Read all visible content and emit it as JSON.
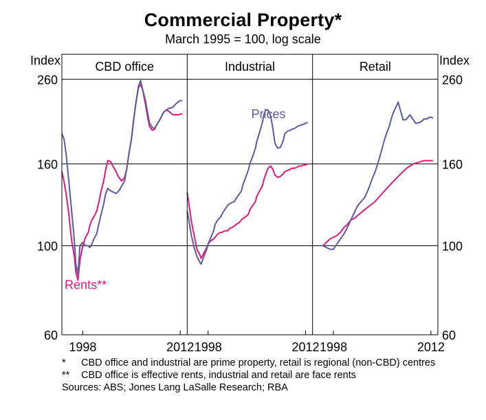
{
  "title": "Commercial Property*",
  "subtitle": "March 1995 = 100, log scale",
  "chart_data": {
    "type": "line",
    "scale": "log",
    "ylabel_left": "Index",
    "ylabel_right": "Index",
    "ylim": [
      60,
      300
    ],
    "yticks": [
      60,
      100,
      160,
      260
    ],
    "ytick_labels": [
      "60",
      "100",
      "160",
      "260"
    ],
    "xlim": [
      1995,
      2013
    ],
    "xticks": [
      1998,
      2012
    ],
    "xtick_labels": [
      "1998",
      "2012"
    ],
    "grid_lines_at": [
      100,
      160,
      260
    ],
    "series_colors": {
      "Prices": "#5b5aa6",
      "Rents": "#e0197a"
    },
    "panels": [
      {
        "name": "CBD office",
        "label": "CBD office",
        "series": [
          {
            "name": "Prices",
            "x": [
              1995,
              1995.3,
              1995.6,
              1996,
              1996.4,
              1996.8,
              1997,
              1997.3,
              1997.6,
              1998,
              1998.4,
              1998.8,
              1999,
              1999.3,
              1999.6,
              2000,
              2000.3,
              2000.6,
              2001,
              2001.3,
              2001.6,
              2002,
              2002.4,
              2002.8,
              2003,
              2003.3,
              2003.6,
              2004,
              2004.3,
              2004.6,
              2005,
              2005.3,
              2005.6,
              2006,
              2006.3,
              2006.6,
              2007,
              2007.3,
              2007.6,
              2008,
              2008.3,
              2008.6,
              2009,
              2009.3,
              2009.6,
              2010,
              2010.4,
              2010.8,
              2011,
              2011.4,
              2011.8,
              2012,
              2012.3
            ],
            "values": [
              190,
              185,
              170,
              145,
              122,
              103,
              90,
              85,
              100,
              102,
              100,
              100,
              99,
              101,
              104,
              107,
              113,
              119,
              127,
              135,
              139,
              137,
              136,
              135,
              136,
              138,
              141,
              145,
              155,
              168,
              185,
              205,
              225,
              250,
              258,
              245,
              230,
              215,
              202,
              197,
              196,
              200,
              205,
              210,
              215,
              218,
              220,
              221,
              222,
              226,
              229,
              230,
              230
            ]
          },
          {
            "name": "Rents",
            "x": [
              1995,
              1995.3,
              1995.6,
              1996,
              1996.4,
              1996.8,
              1997,
              1997.3,
              1997.6,
              1998,
              1998.4,
              1998.8,
              1999,
              1999.3,
              1999.6,
              2000,
              2000.3,
              2000.6,
              2001,
              2001.3,
              2001.6,
              2002,
              2002.4,
              2002.8,
              2003,
              2003.3,
              2003.6,
              2004,
              2004.3,
              2004.6,
              2005,
              2005.3,
              2005.6,
              2006,
              2006.3,
              2006.6,
              2007,
              2007.3,
              2007.6,
              2008,
              2008.3,
              2008.6,
              2009,
              2009.3,
              2009.6,
              2010,
              2010.4,
              2010.8,
              2011,
              2011.4,
              2011.8,
              2012,
              2012.3
            ],
            "values": [
              153,
              145,
              135,
              120,
              103,
              94,
              86,
              82,
              92,
              100,
              105,
              108,
              112,
              116,
              118,
              122,
              128,
              136,
              145,
              155,
              163,
              162,
              157,
              153,
              150,
              147,
              145,
              148,
              155,
              168,
              185,
              205,
              225,
              248,
              252,
              245,
              225,
              210,
              198,
              194,
              195,
              200,
              205,
              210,
              215,
              218,
              216,
              213,
              212,
              212,
              212,
              213,
              213
            ]
          }
        ]
      },
      {
        "name": "Industrial",
        "label": "Industrial",
        "annotation": "Prices",
        "series": [
          {
            "name": "Prices",
            "x": [
              1995,
              1995.3,
              1995.6,
              1996,
              1996.4,
              1996.8,
              1997,
              1997.4,
              1997.8,
              1998,
              1998.4,
              1998.8,
              1999,
              1999.4,
              1999.8,
              2000,
              2000.4,
              2000.8,
              2001,
              2001.4,
              2001.8,
              2002,
              2002.4,
              2002.8,
              2003,
              2003.4,
              2003.8,
              2004,
              2004.4,
              2004.8,
              2005,
              2005.4,
              2005.8,
              2006,
              2006.3,
              2006.6,
              2007,
              2007.3,
              2007.6,
              2008,
              2008.4,
              2008.8,
              2009,
              2009.4,
              2009.8,
              2010,
              2010.4,
              2010.8,
              2011,
              2011.4,
              2011.8,
              2012,
              2012.3
            ],
            "values": [
              122,
              114,
              106,
              99,
              94,
              91,
              90,
              94,
              98,
              101,
              105,
              109,
              113,
              116,
              118,
              120,
              123,
              126,
              127,
              128,
              129,
              131,
              134,
              137,
              142,
              148,
              155,
              160,
              167,
              175,
              182,
              192,
              203,
              212,
              218,
              218,
              210,
              196,
              180,
              175,
              176,
              183,
              190,
              193,
              194,
              195,
              196,
              198,
              199,
              200,
              201,
              202,
              203
            ]
          },
          {
            "name": "Rents",
            "x": [
              1995,
              1995.3,
              1995.6,
              1996,
              1996.4,
              1996.8,
              1997,
              1997.4,
              1997.8,
              1998,
              1998.4,
              1998.8,
              1999,
              1999.4,
              1999.8,
              2000,
              2000.4,
              2000.8,
              2001,
              2001.4,
              2001.8,
              2002,
              2002.4,
              2002.8,
              2003,
              2003.4,
              2003.8,
              2004,
              2004.4,
              2004.8,
              2005,
              2005.4,
              2005.8,
              2006,
              2006.3,
              2006.6,
              2007,
              2007.3,
              2007.6,
              2008,
              2008.4,
              2008.8,
              2009,
              2009.4,
              2009.8,
              2010,
              2010.4,
              2010.8,
              2011,
              2011.4,
              2011.8,
              2012,
              2012.3
            ],
            "values": [
              136,
              125,
              115,
              106,
              98,
              95,
              93,
              96,
              99,
              101,
              103,
              104,
              105,
              107,
              108,
              108,
              109,
              109,
              110,
              111,
              112,
              113,
              114,
              116,
              117,
              118,
              120,
              123,
              126,
              129,
              133,
              137,
              141,
              146,
              151,
              156,
              158,
              155,
              150,
              148,
              149,
              151,
              153,
              154,
              155,
              156,
              156,
              157,
              158,
              158,
              159,
              159,
              160
            ]
          }
        ]
      },
      {
        "name": "Retail",
        "label": "Retail",
        "series": [
          {
            "name": "Prices",
            "x": [
              1996.5,
              1997,
              1997.5,
              1998,
              1998.5,
              1999,
              1999.5,
              2000,
              2000.5,
              2001,
              2001.5,
              2002,
              2002.5,
              2003,
              2003.5,
              2004,
              2004.5,
              2005,
              2005.3,
              2005.6,
              2006,
              2006.3,
              2006.6,
              2007,
              2007.3,
              2007.6,
              2008,
              2008.4,
              2008.8,
              2009,
              2009.4,
              2009.8,
              2010,
              2010.4,
              2010.8,
              2011,
              2011.4,
              2011.8,
              2012,
              2012.3
            ],
            "values": [
              100,
              99,
              98,
              98,
              101,
              104,
              107,
              111,
              116,
              121,
              126,
              129,
              132,
              138,
              146,
              153,
              163,
              175,
              183,
              190,
              198,
              207,
              215,
              222,
              228,
              218,
              206,
              206,
              210,
              212,
              207,
              202,
              202,
              203,
              205,
              207,
              207,
              209,
              209,
              208
            ]
          },
          {
            "name": "Rents",
            "x": [
              1996.5,
              1997,
              1997.5,
              1998,
              1998.5,
              1999,
              1999.5,
              2000,
              2000.5,
              2001,
              2001.5,
              2002,
              2002.5,
              2003,
              2003.5,
              2004,
              2004.5,
              2005,
              2005.5,
              2006,
              2006.5,
              2007,
              2007.5,
              2008,
              2008.5,
              2009,
              2009.5,
              2010,
              2010.5,
              2011,
              2011.5,
              2012,
              2012.3
            ],
            "values": [
              100,
              102,
              104,
              105,
              106,
              108,
              111,
              113,
              116,
              117,
              119,
              121,
              123,
              125,
              127,
              129,
              132,
              135,
              138,
              141,
              144,
              147,
              150,
              153,
              156,
              158,
              160,
              161,
              162,
              163,
              163,
              163,
              163
            ]
          }
        ]
      }
    ],
    "annotations": [
      {
        "text": "Prices",
        "panel": "Industrial",
        "color": "#5b5aa6"
      },
      {
        "text": "Rents**",
        "panel": "CBD office",
        "color": "#e0197a"
      }
    ]
  },
  "notes": [
    {
      "mark": "*",
      "text": "CBD office and industrial are prime property, retail is regional (non-CBD) centres"
    },
    {
      "mark": "**",
      "text": "CBD office is effective rents, industrial and retail are face rents"
    }
  ],
  "sources": "Sources: ABS; Jones Lang LaSalle Research; RBA"
}
